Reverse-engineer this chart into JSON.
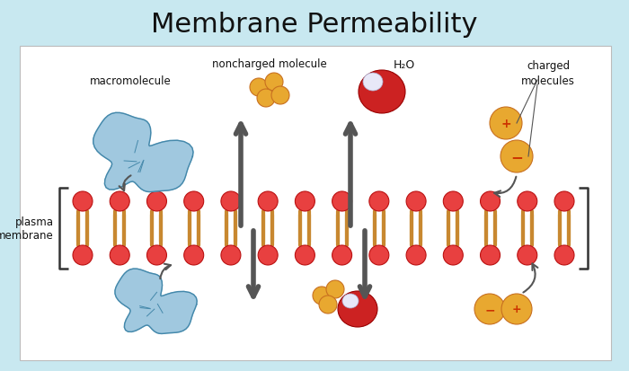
{
  "title": "Membrane Permeability",
  "title_fontsize": 22,
  "title_color": "#111111",
  "bg_color": "#c8e8f0",
  "panel_bg": "#ffffff",
  "labels": {
    "noncharged_molecule": "noncharged molecule",
    "h2o": "H₂O",
    "charged_molecules": "charged\nmolecules",
    "macromolecule": "macromolecule",
    "plasma_membrane": "plasma\nmembrane"
  },
  "membrane_color_head": "#e84040",
  "membrane_color_tail": "#c88830",
  "arrow_color": "#555555",
  "orange_ball_color": "#e8a830",
  "water_red": "#cc2222",
  "water_white": "#e8e8f8",
  "blue_blob_color": "#88bbd8"
}
